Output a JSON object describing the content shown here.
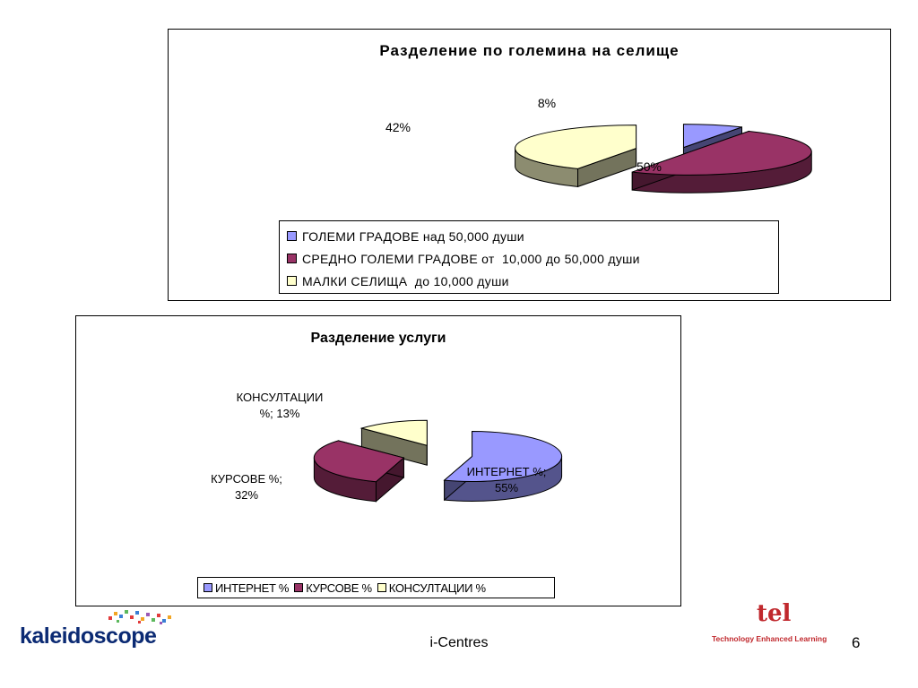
{
  "chart_data": [
    {
      "type": "pie",
      "title": "Разделение по големина на селище",
      "categories": [
        "ГОЛЕМИ ГРАДОВЕ над 50,000 души",
        "СРЕДНО ГОЛЕМИ ГРАДОВЕ от  10,000 до 50,000 души",
        "МАЛКИ СЕЛИЩА  до 10,000 души"
      ],
      "values": [
        8,
        50,
        42
      ],
      "data_labels": [
        "8%",
        "50%",
        "42%"
      ],
      "colors": [
        "#9999ff",
        "#993366",
        "#ffffcc"
      ],
      "exploded": true,
      "three_d": true,
      "legend_position": "bottom"
    },
    {
      "type": "pie",
      "title": "Разделение услуги",
      "categories": [
        "ИНТЕРНЕТ %",
        "КУРСОВЕ %",
        "КОНСУЛТАЦИИ %"
      ],
      "values": [
        55,
        32,
        13
      ],
      "data_labels": [
        [
          "ИНТЕРНЕТ %;",
          "55%"
        ],
        [
          "КУРСОВЕ %;",
          "32%"
        ],
        [
          "КОНСУЛТАЦИИ",
          "%; 13%"
        ]
      ],
      "colors": [
        "#9999ff",
        "#993366",
        "#ffffcc"
      ],
      "exploded": true,
      "three_d": true,
      "legend_position": "bottom"
    }
  ],
  "footer": {
    "center_text": "i-Centres",
    "page_number": "6",
    "logo_left": "kaleidoscope",
    "logo_right_mark": "tel",
    "logo_right_text": "Technology Enhanced Learning"
  }
}
